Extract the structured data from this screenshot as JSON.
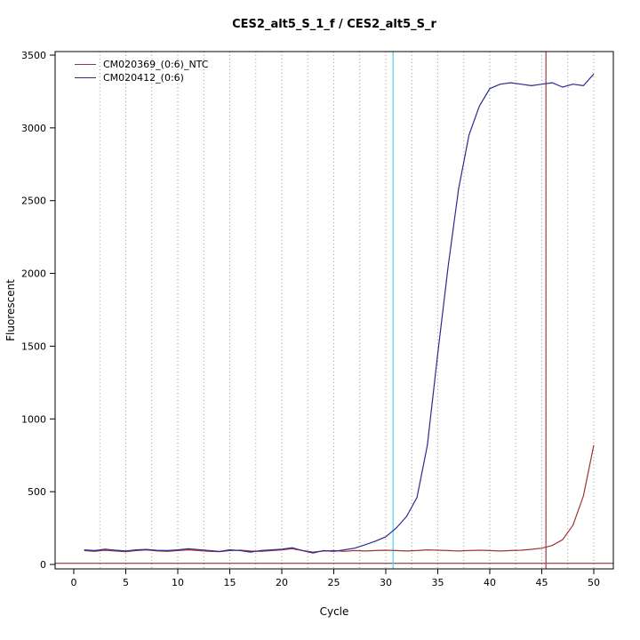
{
  "chart_data": {
    "type": "line",
    "title": "CES2_alt5_S_1_f / CES2_alt5_S_r",
    "xlabel": "Cycle",
    "ylabel": "Fluorescent",
    "xlim": [
      0,
      50
    ],
    "ylim": [
      0,
      3500
    ],
    "x_ticks": [
      0,
      5,
      10,
      15,
      20,
      25,
      30,
      35,
      40,
      45,
      50
    ],
    "y_ticks": [
      0,
      500,
      1000,
      1500,
      2000,
      2500,
      3000,
      3500
    ],
    "grid": {
      "vertical_interval": 2.5,
      "style": "dotted",
      "color": "#9a9a9a"
    },
    "x_start": 1,
    "series": [
      {
        "name": "CM020369_(0:6)_NTC",
        "color": "#9e3434",
        "values": [
          95,
          90,
          98,
          92,
          88,
          95,
          100,
          93,
          90,
          95,
          100,
          95,
          90,
          88,
          95,
          98,
          92,
          90,
          95,
          100,
          108,
          95,
          85,
          92,
          95,
          90,
          95,
          92,
          95,
          98,
          95,
          92,
          95,
          100,
          98,
          95,
          92,
          95,
          98,
          95,
          92,
          95,
          98,
          104,
          112,
          130,
          170,
          270,
          470,
          820
        ]
      },
      {
        "name": "CM020412_(0:6)",
        "color": "#2b2b90",
        "values": [
          100,
          95,
          105,
          98,
          92,
          100,
          103,
          97,
          95,
          100,
          108,
          102,
          96,
          90,
          100,
          95,
          85,
          95,
          100,
          105,
          115,
          95,
          78,
          95,
          90,
          100,
          112,
          135,
          160,
          190,
          250,
          330,
          460,
          820,
          1450,
          2050,
          2580,
          2950,
          3150,
          3270,
          3300,
          3310,
          3300,
          3290,
          3300,
          3310,
          3280,
          3300,
          3290,
          3370
        ]
      }
    ],
    "annotations": {
      "threshold_line_y": 8,
      "threshold_color": "#7b1f1f",
      "ct_lines": [
        {
          "x": 30.7,
          "color": "#45d9e2",
          "series": "CM020412_(0:6)"
        },
        {
          "x": 45.4,
          "color": "#a04040",
          "series": "CM020369_(0:6)_NTC"
        }
      ]
    },
    "legend": {
      "position": "top-left",
      "items": [
        {
          "label": "CM020369_(0:6)_NTC",
          "color": "#9e3434"
        },
        {
          "label": "CM020412_(0:6)",
          "color": "#2b2b90"
        }
      ]
    }
  }
}
